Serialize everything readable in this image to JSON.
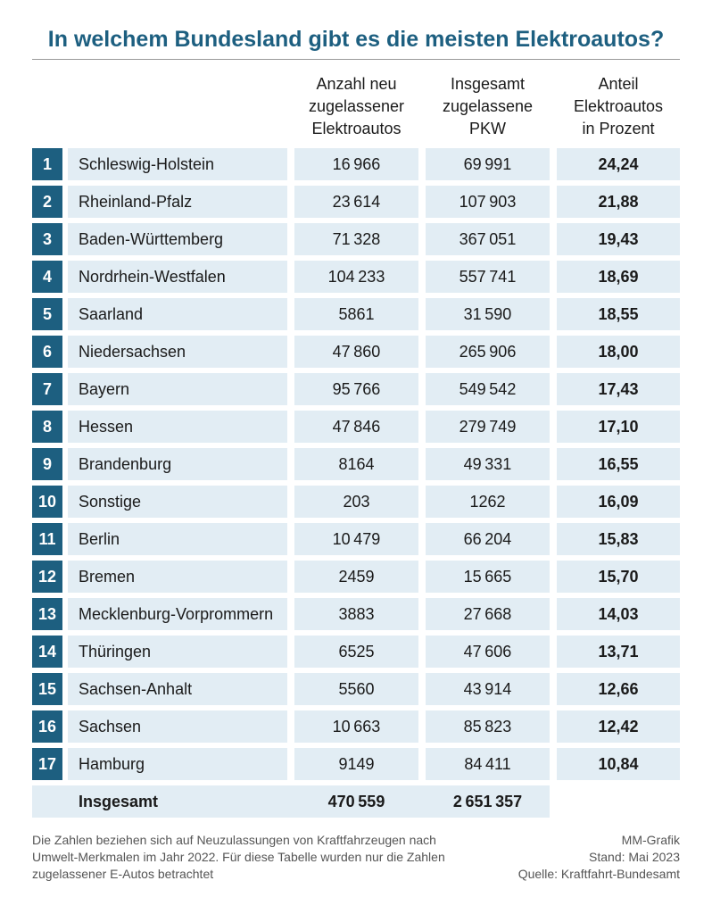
{
  "title": "In welchem Bundesland gibt es die meisten Elektroautos?",
  "headers": {
    "col1": [
      "Anzahl neu",
      "zugelassener",
      "Elektroautos"
    ],
    "col2": [
      "Insgesamt",
      "zugelassene",
      "PKW"
    ],
    "col3": [
      "Anteil",
      "Elektroautos",
      "in Prozent"
    ]
  },
  "colors": {
    "accent": "#1d5f80",
    "row_bg": "#e2edf4"
  },
  "chart_data": {
    "type": "table",
    "title": "In welchem Bundesland gibt es die meisten Elektroautos?",
    "columns": [
      "",
      "",
      "Anzahl neu zugelassener Elektroautos",
      "Insgesamt zugelassene PKW",
      "Anteil Elektroautos in Prozent"
    ],
    "rows": [
      {
        "rank": "1",
        "name": "Schleswig-Holstein",
        "ev": "16966",
        "pkw": "69991",
        "share": "24,24"
      },
      {
        "rank": "2",
        "name": "Rheinland-Pfalz",
        "ev": "23614",
        "pkw": "107903",
        "share": "21,88"
      },
      {
        "rank": "3",
        "name": "Baden-Württemberg",
        "ev": "71328",
        "pkw": "367051",
        "share": "19,43"
      },
      {
        "rank": "4",
        "name": "Nordrhein-Westfalen",
        "ev": "104233",
        "pkw": "557741",
        "share": "18,69"
      },
      {
        "rank": "5",
        "name": "Saarland",
        "ev": "5861",
        "pkw": "31590",
        "share": "18,55"
      },
      {
        "rank": "6",
        "name": "Niedersachsen",
        "ev": "47860",
        "pkw": "265906",
        "share": "18,00"
      },
      {
        "rank": "7",
        "name": "Bayern",
        "ev": "95766",
        "pkw": "549542",
        "share": "17,43"
      },
      {
        "rank": "8",
        "name": "Hessen",
        "ev": "47846",
        "pkw": "279749",
        "share": "17,10"
      },
      {
        "rank": "9",
        "name": "Brandenburg",
        "ev": "8164",
        "pkw": "49331",
        "share": "16,55"
      },
      {
        "rank": "10",
        "name": "Sonstige",
        "ev": "203",
        "pkw": "1262",
        "share": "16,09"
      },
      {
        "rank": "11",
        "name": "Berlin",
        "ev": "10479",
        "pkw": "66204",
        "share": "15,83"
      },
      {
        "rank": "12",
        "name": "Bremen",
        "ev": "2459",
        "pkw": "15665",
        "share": "15,70"
      },
      {
        "rank": "13",
        "name": "Mecklenburg-Vorprommern",
        "ev": "3883",
        "pkw": "27668",
        "share": "14,03"
      },
      {
        "rank": "14",
        "name": "Thüringen",
        "ev": "6525",
        "pkw": "47606",
        "share": "13,71"
      },
      {
        "rank": "15",
        "name": "Sachsen-Anhalt",
        "ev": "5560",
        "pkw": "43914",
        "share": "12,66"
      },
      {
        "rank": "16",
        "name": "Sachsen",
        "ev": "10663",
        "pkw": "85823",
        "share": "12,42"
      },
      {
        "rank": "17",
        "name": "Hamburg",
        "ev": "9149",
        "pkw": "84411",
        "share": "10,84"
      }
    ],
    "total": {
      "label": "Insgesamt",
      "ev": "470559",
      "pkw": "2651357"
    }
  },
  "footer": {
    "note": "Die Zahlen beziehen sich auf Neuzulassungen von Kraftfahrzeugen nach Umwelt-Merkmalen im Jahr 2022. Für diese Tabelle wurden nur die Zahlen zugelassener E-Autos betrachtet",
    "credit": "MM-Grafik",
    "date": "Stand: Mai 2023",
    "source": "Quelle: Kraftfahrt-Bundesamt"
  }
}
